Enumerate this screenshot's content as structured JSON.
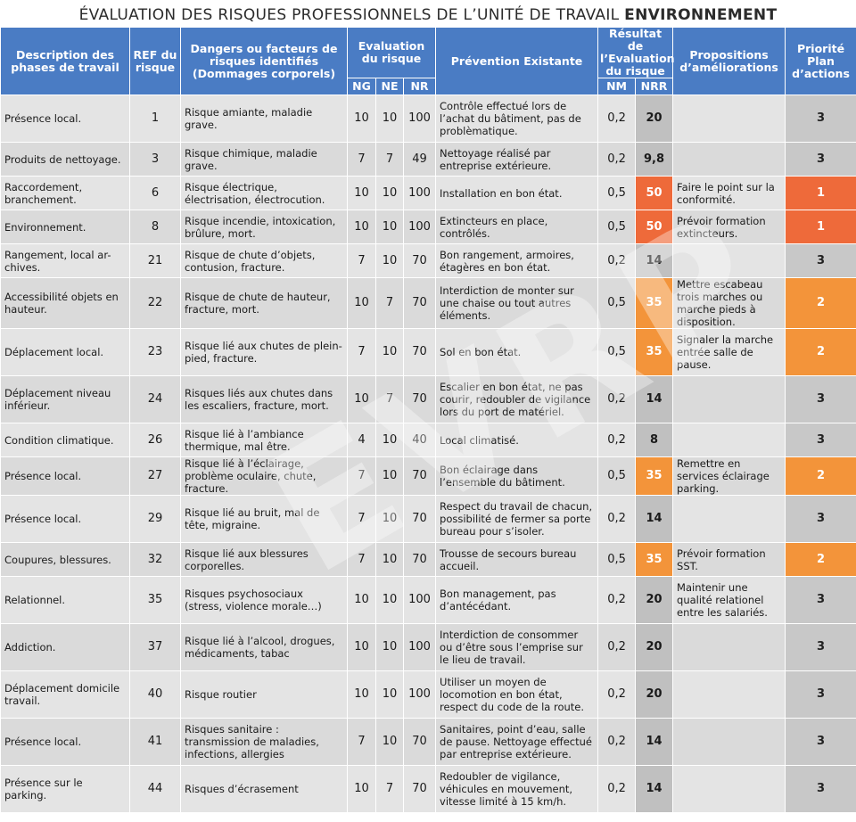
{
  "title": {
    "prefix": "ÉVALUATION DES RISQUES PROFESSIONNELS DE L’UNITÉ DE TRAVAIL",
    "emphasis": "ENVIRONNEMENT"
  },
  "headers": {
    "description": "Description des phases de travail",
    "ref": "REF du risque",
    "dangers": "Dangers ou facteurs de risques identifiés (Dommages corporels)",
    "evaluation": "Evaluation du risque",
    "ng": "NG",
    "ne": "NE",
    "nr": "NR",
    "prevention": "Prévention Existante",
    "resultat": "Résultat de l’Evaluation du risque",
    "nm": "NM",
    "nrr": "NRR",
    "propositions": "Propositions d’améliorations",
    "priorite": "Priorité Plan d’actions"
  },
  "watermark": "EVRP",
  "colors": {
    "header": "#4a7cc4",
    "orange_high": "#ee6a3a",
    "orange_mid": "#f3943a",
    "grey": "#c0c0c0"
  },
  "rows": [
    {
      "desc": "Présence local.",
      "ref": "1",
      "danger": "Risque amiante, maladie grave.",
      "ng": "10",
      "ne": "10",
      "nr": "100",
      "prev": "Contrôle effectué lors de l’achat du bâtiment, pas de problèmatique.",
      "nm": "0,2",
      "nrr": "20",
      "prop": "",
      "prio": "3",
      "level": "none"
    },
    {
      "desc": "Produits de nettoyage.",
      "ref": "3",
      "danger": "Risque chimique, maladie grave.",
      "ng": "7",
      "ne": "7",
      "nr": "49",
      "prev": "Nettoyage réalisé par entreprise extérieure.",
      "nm": "0,2",
      "nrr": "9,8",
      "prop": "",
      "prio": "3",
      "level": "none"
    },
    {
      "desc": "Raccordement, branchement.",
      "ref": "6",
      "danger": "Risque électrique, électrisation, électrocution.",
      "ng": "10",
      "ne": "10",
      "nr": "100",
      "prev": "Installation en bon état.",
      "nm": "0,5",
      "nrr": "50",
      "prop": "Faire le point sur la conformité.",
      "prio": "1",
      "level": "high"
    },
    {
      "desc": "Environnement.",
      "ref": "8",
      "danger": "Risque incendie, intoxication, brûlure, mort.",
      "ng": "10",
      "ne": "10",
      "nr": "100",
      "prev": "Extincteurs en place, contrôlés.",
      "nm": "0,5",
      "nrr": "50",
      "prop": "Prévoir formation extincteurs.",
      "prio": "1",
      "level": "high"
    },
    {
      "desc": "Rangement, local ar-chives.",
      "ref": "21",
      "danger": "Risque de chute d’objets, contusion,  fracture.",
      "ng": "7",
      "ne": "10",
      "nr": "70",
      "prev": "Bon rangement, armoires, étagères en bon état.",
      "nm": "0,2",
      "nrr": "14",
      "prop": "",
      "prio": "3",
      "level": "none"
    },
    {
      "desc": "Accessibilité objets en hauteur.",
      "ref": "22",
      "danger": "Risque de chute de hauteur, fracture, mort.",
      "ng": "10",
      "ne": "7",
      "nr": "70",
      "prev": "Interdiction de monter sur une chaise ou tout autres éléments.",
      "nm": "0,5",
      "nrr": "35",
      "prop": "Mettre escabeau trois marches ou marche pieds à disposition.",
      "prio": "2",
      "level": "mid"
    },
    {
      "desc": "Déplacement local.",
      "ref": "23",
      "danger": "Risque lié aux chutes de plein-pied, fracture.",
      "ng": "7",
      "ne": "10",
      "nr": "70",
      "prev": "Sol en bon état.",
      "nm": "0,5",
      "nrr": "35",
      "prop": "Signaler la marche entrée salle de pause.",
      "prio": "2",
      "level": "mid"
    },
    {
      "desc": "Déplacement niveau inférieur.",
      "ref": "24",
      "danger": "Risques liés aux chutes dans les escaliers, fracture, mort.",
      "ng": "10",
      "ne": "7",
      "nr": "70",
      "prev": "Escalier en bon état, ne pas courir, redoubler de vigilance lors du port de matériel.",
      "nm": "0,2",
      "nrr": "14",
      "prop": "",
      "prio": "3",
      "level": "none"
    },
    {
      "desc": "Condition climatique.",
      "ref": "26",
      "danger": "Risque lié à l’ambiance thermique, mal être.",
      "ng": "4",
      "ne": "10",
      "nr": "40",
      "prev": "Local climatisé.",
      "nm": "0,2",
      "nrr": "8",
      "prop": "",
      "prio": "3",
      "level": "none"
    },
    {
      "desc": "Présence local.",
      "ref": "27",
      "danger": "Risque lié à l’éclairage, problème oculaire, chute, fracture.",
      "ng": "7",
      "ne": "10",
      "nr": "70",
      "prev": "Bon éclairage dans l’ensemble du bâtiment.",
      "nm": "0,5",
      "nrr": "35",
      "prop": "Remettre en services éclairage parking.",
      "prio": "2",
      "level": "mid"
    },
    {
      "desc": "Présence local.",
      "ref": "29",
      "danger": "Risque lié au bruit, mal de tête, migraine.",
      "ng": "7",
      "ne": "10",
      "nr": "70",
      "prev": "Respect du travail de chacun, possibilité de fermer sa porte bureau pour s’isoler.",
      "nm": "0,2",
      "nrr": "14",
      "prop": "",
      "prio": "3",
      "level": "none"
    },
    {
      "desc": "Coupures, blessures.",
      "ref": "32",
      "danger": "Risque lié aux blessures corporelles.",
      "ng": "7",
      "ne": "10",
      "nr": "70",
      "prev": "Trousse de secours bureau accueil.",
      "nm": "0,5",
      "nrr": "35",
      "prop": "Prévoir formation SST.",
      "prio": "2",
      "level": "mid"
    },
    {
      "desc": "Relationnel.",
      "ref": "35",
      "danger": "Risques psychosociaux (stress, violence morale…)",
      "ng": "10",
      "ne": "10",
      "nr": "100",
      "prev": "Bon management, pas d’antécédant.",
      "nm": "0,2",
      "nrr": "20",
      "prop": "Maintenir une qualité relationel entre les salariés.",
      "prio": "3",
      "level": "none"
    },
    {
      "desc": "Addiction.",
      "ref": "37",
      "danger": "Risque lié à l’alcool, drogues, médicaments, tabac",
      "ng": "10",
      "ne": "10",
      "nr": "100",
      "prev": "Interdiction de consommer ou d’être sous l’emprise sur le lieu de travail.",
      "nm": "0,2",
      "nrr": "20",
      "prop": "",
      "prio": "3",
      "level": "none"
    },
    {
      "desc": "Déplacement domicile travail.",
      "ref": "40",
      "danger": "Risque routier",
      "ng": "10",
      "ne": "10",
      "nr": "100",
      "prev": "Utiliser un moyen de locomotion en bon état, respect du code de la route.",
      "nm": "0,2",
      "nrr": "20",
      "prop": "",
      "prio": "3",
      "level": "none"
    },
    {
      "desc": "Présence local.",
      "ref": "41",
      "danger": "Risques sanitaire : transmission de maladies, infections, allergies",
      "ng": "7",
      "ne": "10",
      "nr": "70",
      "prev": "Sanitaires, point d’eau, salle de pause. Nettoyage effectué par entreprise extérieure.",
      "nm": "0,2",
      "nrr": "14",
      "prop": "",
      "prio": "3",
      "level": "none"
    },
    {
      "desc": "Présence sur le parking.",
      "ref": "44",
      "danger": "Risques d’écrasement",
      "ng": "10",
      "ne": "7",
      "nr": "70",
      "prev": "Redoubler de vigilance, véhicules en mouvement, vitesse limité à 15 km/h.",
      "nm": "0,2",
      "nrr": "14",
      "prop": "",
      "prio": "3",
      "level": "none"
    }
  ]
}
